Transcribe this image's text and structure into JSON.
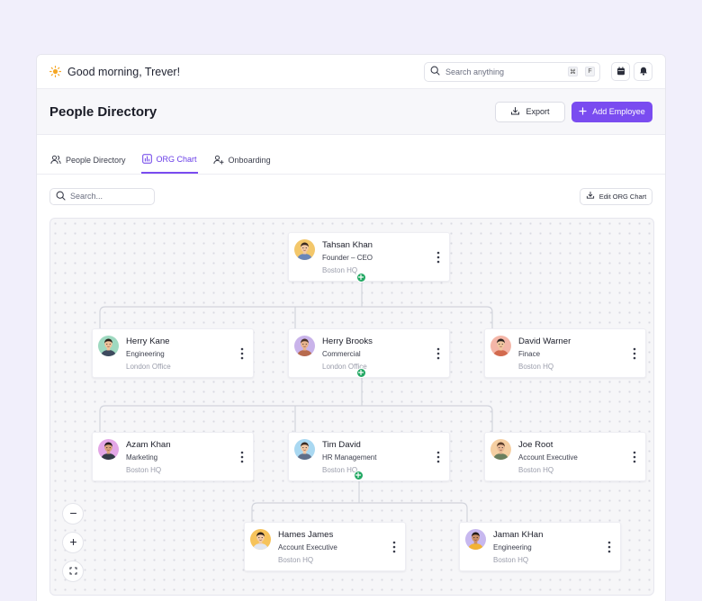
{
  "topbar": {
    "greeting": "Good morning, Trever!",
    "search_placeholder": "Search anything",
    "shortcut": [
      "⌘",
      "F"
    ]
  },
  "header": {
    "title": "People Directory",
    "export_label": "Export",
    "add_label": "Add Employee"
  },
  "tabs": [
    {
      "label": "People Directory"
    },
    {
      "label": "ORG Chart"
    },
    {
      "label": "Onboarding"
    }
  ],
  "toolbar": {
    "search_placeholder": "Search...",
    "edit_label": "Edit ORG Chart"
  },
  "colors": {
    "accent": "#7a4cf0",
    "connector_plus": "#22a863"
  },
  "org": [
    {
      "name": "Tahsan Khan",
      "role": "Founder – CEO",
      "location": "Boston HQ",
      "avatar_bg": "#f3c76a"
    },
    {
      "name": "Herry Kane",
      "role": "Engineering",
      "location": "London Office",
      "avatar_bg": "#9ed9c0"
    },
    {
      "name": "Herry Brooks",
      "role": "Commercial",
      "location": "London Office",
      "avatar_bg": "#c9b3ea"
    },
    {
      "name": "David Warner",
      "role": "Finace",
      "location": "Boston HQ",
      "avatar_bg": "#f4b6a8"
    },
    {
      "name": "Azam Khan",
      "role": "Marketing",
      "location": "Boston HQ",
      "avatar_bg": "#e3a7e6"
    },
    {
      "name": "Tim David",
      "role": "HR Management",
      "location": "Boston HQ",
      "avatar_bg": "#a9d8f1"
    },
    {
      "name": "Joe Root",
      "role": "Account Executive",
      "location": "Boston HQ",
      "avatar_bg": "#f5cfa2"
    },
    {
      "name": "Hames James",
      "role": "Account Executive",
      "location": "Boston HQ",
      "avatar_bg": "#f6c35b"
    },
    {
      "name": "Jaman KHan",
      "role": "Engineering",
      "location": "Boston HQ",
      "avatar_bg": "#c7b8ef"
    }
  ]
}
